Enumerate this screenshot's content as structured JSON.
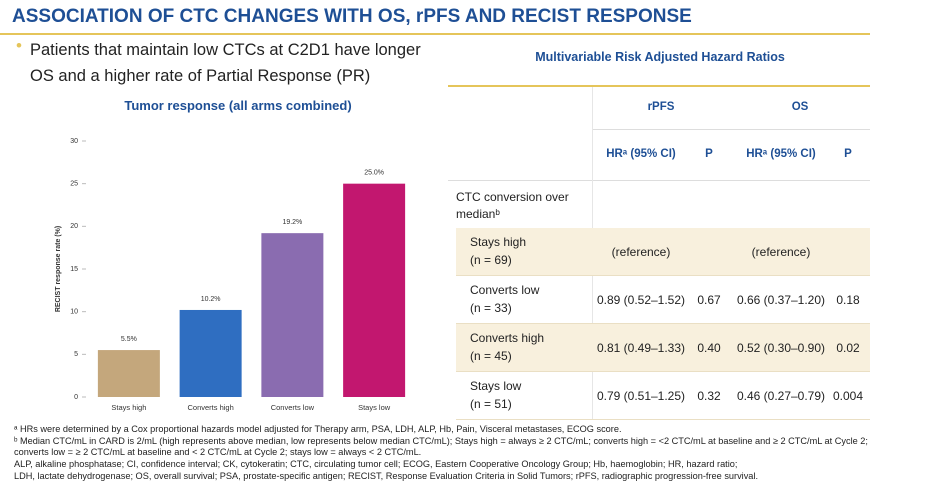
{
  "title": "ASSOCIATION OF CTC CHANGES WITH OS, rPFS AND RECIST RESPONSE",
  "bullet": "Patients that maintain low CTCs at C2D1 have longer OS and a higher rate of Partial Response (PR)",
  "chart_data": {
    "type": "bar",
    "title": "Tumor response (all arms combined)",
    "y_label": "RECIST response rate (%)",
    "categories": [
      "Stays high",
      "Converts high",
      "Converts low",
      "Stays low"
    ],
    "values": [
      5.5,
      10.2,
      19.2,
      25.0
    ],
    "value_labels": [
      "5.5%",
      "10.2%",
      "19.2%",
      "25.0%"
    ],
    "colors": [
      "#c4a77c",
      "#2f6ec1",
      "#8a6cb0",
      "#c2176f"
    ],
    "ylim": [
      0,
      30
    ],
    "yticks": [
      0,
      5,
      10,
      15,
      20,
      25,
      30
    ],
    "grid": false
  },
  "table": {
    "title": "Multivariable Risk Adjusted Hazard Ratios",
    "groups": [
      "rPFS",
      "OS"
    ],
    "columns": [
      "HRᵃ (95% CI)",
      "P",
      "HRᵃ (95% CI)",
      "P"
    ],
    "section": "CTC conversion over medianᵇ",
    "rows": [
      {
        "label": "Stays high",
        "n": "(n = 69)",
        "rpfs": "(reference)",
        "os": "(reference)"
      },
      {
        "label": "Converts low",
        "n": "(n = 33)",
        "cells": [
          "0.89 (0.52–1.52)",
          "0.67",
          "0.66 (0.37–1.20)",
          "0.18"
        ]
      },
      {
        "label": "Converts high",
        "n": "(n = 45)",
        "cells": [
          "0.81 (0.49–1.33)",
          "0.40",
          "0.52 (0.30–0.90)",
          "0.02"
        ]
      },
      {
        "label": "Stays low",
        "n": "(n = 51)",
        "cells": [
          "0.79 (0.51–1.25)",
          "0.32",
          "0.46 (0.27–0.79)",
          "0.004"
        ]
      }
    ]
  },
  "footnotes": [
    "ᵃ HRs were determined by a Cox proportional hazards model adjusted for Therapy arm, PSA, LDH, ALP, Hb, Pain, Visceral metastases, ECOG score.",
    "ᵇ Median CTC/mL in CARD is 2/mL (high represents above median, low represents below median CTC/mL); Stays high = always ≥ 2 CTC/mL; converts high = <2 CTC/mL at baseline and ≥ 2 CTC/mL at Cycle 2; converts low = ≥ 2 CTC/mL at baseline and < 2 CTC/mL at Cycle 2; stays low = always < 2 CTC/mL.",
    "ALP, alkaline phosphatase; CI, confidence interval; CK, cytokeratin; CTC, circulating tumor cell; ECOG, Eastern Cooperative Oncology Group; Hb, haemoglobin; HR, hazard ratio;",
    "LDH, lactate dehydrogenase; OS, overall survival; PSA, prostate-specific antigen; RECIST, Response Evaluation Criteria in Solid Tumors; rPFS, radiographic progression-free survival."
  ]
}
